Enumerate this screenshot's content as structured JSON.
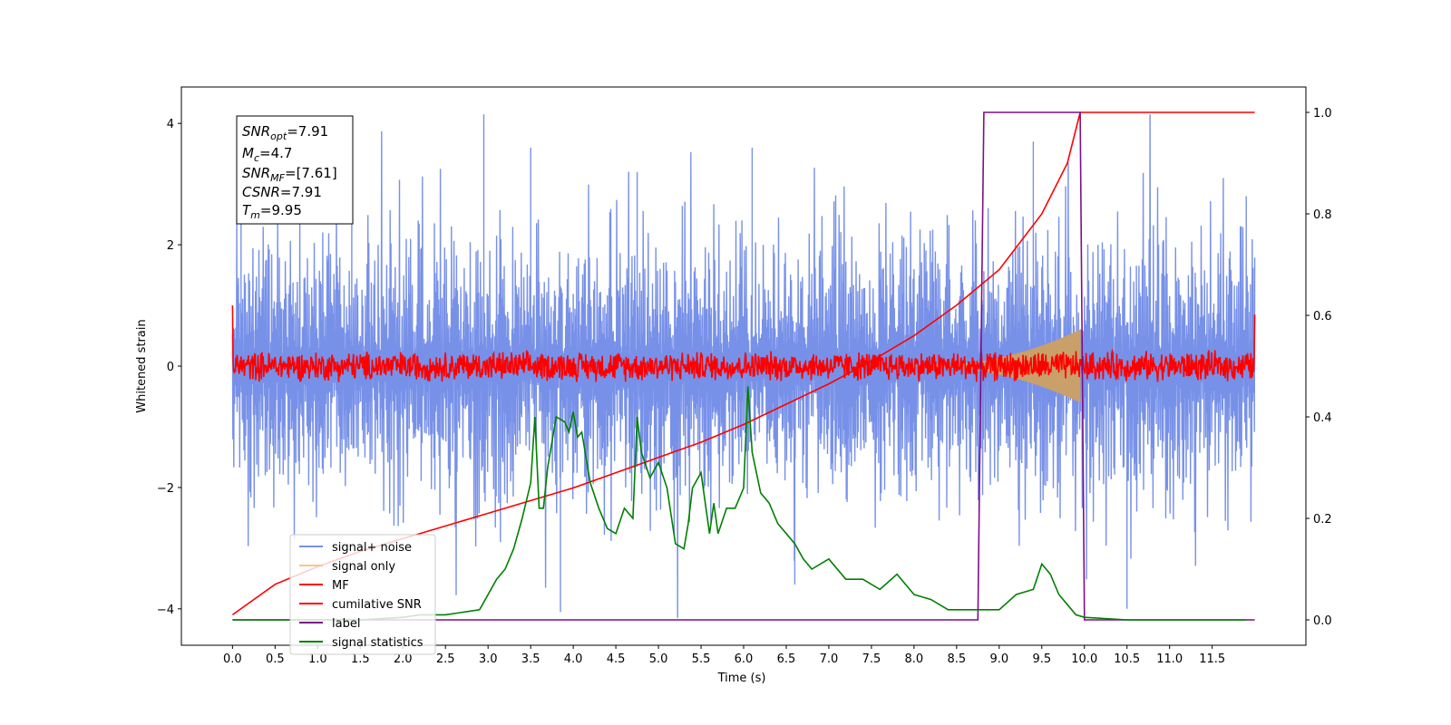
{
  "chart_data": {
    "type": "line",
    "xlabel": "Time (s)",
    "ylabel": "Whitened strain",
    "xlim": [
      -0.6,
      12.6
    ],
    "ylim_left": [
      -4.6,
      4.6
    ],
    "ylim_right": [
      -0.05,
      1.05
    ],
    "x_ticks": [
      "0.0",
      "0.5",
      "1.0",
      "1.5",
      "2.0",
      "2.5",
      "3.0",
      "3.5",
      "4.0",
      "4.5",
      "5.0",
      "5.5",
      "6.0",
      "6.5",
      "7.0",
      "7.5",
      "8.0",
      "8.5",
      "9.0",
      "9.5",
      "10.0",
      "10.5",
      "11.0",
      "11.5"
    ],
    "y_ticks_left": [
      "4",
      "2",
      "0",
      "−2",
      "−4"
    ],
    "y_ticks_right": [
      "1.0",
      "0.8",
      "0.6",
      "0.4",
      "0.2",
      "0.0"
    ],
    "grid": false,
    "legend_position": "lower-left",
    "stats_box": {
      "snr_opt": "7.91",
      "mc": "4.7",
      "snr_mf": "[7.61]",
      "csnr": "7.91",
      "tm": "9.95"
    },
    "series": [
      {
        "name": "signal+ noise",
        "color": "#7891e8",
        "axis": "left",
        "description_kind": "noise",
        "amplitude_typical": 1.7,
        "amplitude_peak": 4.15,
        "x_range": [
          0.0,
          12.0
        ],
        "peaks": [
          [
            2.95,
            4.15
          ],
          [
            0.1,
            2.5
          ],
          [
            1.4,
            2.8
          ],
          [
            3.5,
            3.6
          ],
          [
            3.85,
            -4.05
          ],
          [
            4.75,
            3.2
          ],
          [
            6.6,
            -3.6
          ],
          [
            6.1,
            3.6
          ],
          [
            9.4,
            3.7
          ],
          [
            10.5,
            -4.0
          ],
          [
            11.9,
            2.8
          ]
        ]
      },
      {
        "name": "signal only",
        "color": "#f5c885",
        "axis": "left",
        "chirp_start": 8.0,
        "chirp_end": 9.95,
        "peak_amplitude": 0.6
      },
      {
        "name": "MF",
        "color": "#ff0000",
        "axis": "left",
        "amplitude_typical": 0.25,
        "start_value": 1.0,
        "end_value": 0.85,
        "x_range": [
          0.0,
          12.0
        ]
      },
      {
        "name": "cumilative SNR",
        "color": "#ff0000",
        "axis": "right",
        "x": [
          0.0,
          0.5,
          1.0,
          1.5,
          2.0,
          2.5,
          3.0,
          3.5,
          4.0,
          4.5,
          5.0,
          5.5,
          6.0,
          6.5,
          7.0,
          7.5,
          8.0,
          8.5,
          9.0,
          9.5,
          9.8,
          9.95,
          12.0
        ],
        "y": [
          0.01,
          0.07,
          0.105,
          0.135,
          0.16,
          0.185,
          0.21,
          0.235,
          0.26,
          0.29,
          0.32,
          0.35,
          0.385,
          0.425,
          0.465,
          0.51,
          0.56,
          0.62,
          0.69,
          0.8,
          0.9,
          1.0,
          1.0
        ]
      },
      {
        "name": "label",
        "color": "#7d0f87",
        "axis": "right",
        "x": [
          0.0,
          8.75,
          8.82,
          9.95,
          10.0,
          12.0
        ],
        "y": [
          0.0,
          0.0,
          1.0,
          1.0,
          0.0,
          0.0
        ]
      },
      {
        "name": "signal statistics",
        "color": "#008000",
        "axis": "right",
        "x": [
          0.0,
          0.5,
          1.0,
          1.5,
          2.0,
          2.2,
          2.5,
          2.9,
          3.1,
          3.2,
          3.3,
          3.4,
          3.5,
          3.55,
          3.6,
          3.65,
          3.7,
          3.75,
          3.8,
          3.9,
          3.95,
          4.0,
          4.05,
          4.1,
          4.2,
          4.3,
          4.4,
          4.5,
          4.6,
          4.7,
          4.75,
          4.8,
          4.9,
          5.0,
          5.1,
          5.2,
          5.3,
          5.35,
          5.4,
          5.5,
          5.6,
          5.65,
          5.7,
          5.8,
          5.9,
          6.0,
          6.05,
          6.1,
          6.2,
          6.3,
          6.4,
          6.5,
          6.6,
          6.7,
          6.8,
          7.0,
          7.2,
          7.4,
          7.6,
          7.8,
          8.0,
          8.2,
          8.4,
          8.6,
          8.8,
          9.0,
          9.2,
          9.4,
          9.5,
          9.6,
          9.7,
          9.8,
          9.9,
          10.0,
          10.5,
          11.0,
          11.5,
          11.9
        ],
        "y": [
          0.0,
          0.0,
          0.0,
          0.0,
          0.005,
          0.01,
          0.01,
          0.02,
          0.08,
          0.1,
          0.14,
          0.2,
          0.27,
          0.4,
          0.22,
          0.22,
          0.3,
          0.35,
          0.4,
          0.39,
          0.37,
          0.41,
          0.36,
          0.37,
          0.27,
          0.22,
          0.18,
          0.17,
          0.22,
          0.2,
          0.4,
          0.33,
          0.28,
          0.31,
          0.26,
          0.15,
          0.14,
          0.19,
          0.26,
          0.29,
          0.17,
          0.23,
          0.17,
          0.22,
          0.22,
          0.26,
          0.46,
          0.33,
          0.25,
          0.23,
          0.19,
          0.17,
          0.15,
          0.12,
          0.1,
          0.12,
          0.08,
          0.08,
          0.06,
          0.09,
          0.05,
          0.04,
          0.02,
          0.02,
          0.02,
          0.02,
          0.05,
          0.06,
          0.11,
          0.09,
          0.05,
          0.03,
          0.01,
          0.005,
          0.0,
          0.0,
          0.0,
          0.0
        ]
      }
    ]
  }
}
